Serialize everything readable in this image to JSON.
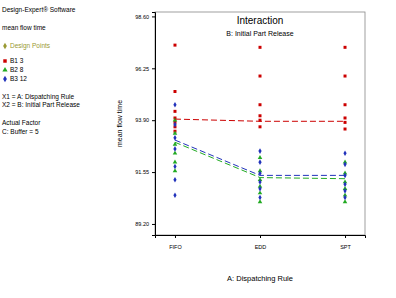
{
  "chart_data": {
    "type": "line",
    "title": "Interaction",
    "subtitle": "B: Initial Part Release",
    "x_label": "A: Dispatching Rule",
    "y_label": "mean flow time",
    "annotations": [
      "Design-Expert® Software",
      "mean flow time",
      "X1 = A: Dispatching Rule",
      "X2 = B: Initial Part Release",
      "Actual Factor",
      "C: Buffer = 5"
    ],
    "points_name": "Design Points",
    "points_color": "#999933",
    "categories": [
      "FIFO",
      "EDD",
      "SPT"
    ],
    "ylim": [
      88.7,
      98.8
    ],
    "yticks": [
      {
        "value": 89.2,
        "label": "89.20"
      },
      {
        "value": 91.55,
        "label": "91.55"
      },
      {
        "value": 93.9,
        "label": "93.90"
      },
      {
        "value": 96.25,
        "label": "96.25"
      },
      {
        "value": 98.6,
        "label": "98.60"
      }
    ],
    "series": [
      {
        "name": "B1 3",
        "color": "#cc0000",
        "marker": "square",
        "line_style": "dashed",
        "values": [
          93.95,
          93.85,
          93.85
        ],
        "points": [
          [
            97.3,
            95.2,
            94.3,
            94.0,
            93.8,
            93.6,
            93.4
          ],
          [
            97.2,
            95.9,
            94.6,
            94.1,
            93.9,
            93.6
          ],
          [
            97.2,
            95.9,
            94.6,
            94.0,
            93.8,
            93.5
          ]
        ]
      },
      {
        "name": "B2 8",
        "color": "#22aa22",
        "marker": "triangle",
        "line_style": "dashed",
        "values": [
          92.9,
          91.3,
          91.25
        ],
        "points": [
          [
            93.9,
            93.3,
            92.8,
            92.4,
            92.0,
            91.6
          ],
          [
            92.2,
            91.6,
            91.2,
            90.9,
            90.6,
            90.2
          ],
          [
            92.0,
            91.5,
            91.1,
            90.8,
            90.5,
            90.2
          ]
        ]
      },
      {
        "name": "B3 12",
        "color": "#2233bb",
        "marker": "diamond",
        "line_style": "dashed",
        "values": [
          93.0,
          91.4,
          91.4
        ],
        "points": [
          [
            94.6,
            93.7,
            93.1,
            92.6,
            91.8,
            91.2,
            90.5
          ],
          [
            92.5,
            92.0,
            91.5,
            91.1,
            90.8,
            90.4
          ],
          [
            92.4,
            91.9,
            91.4,
            91.0,
            90.7,
            90.4
          ]
        ]
      }
    ]
  }
}
